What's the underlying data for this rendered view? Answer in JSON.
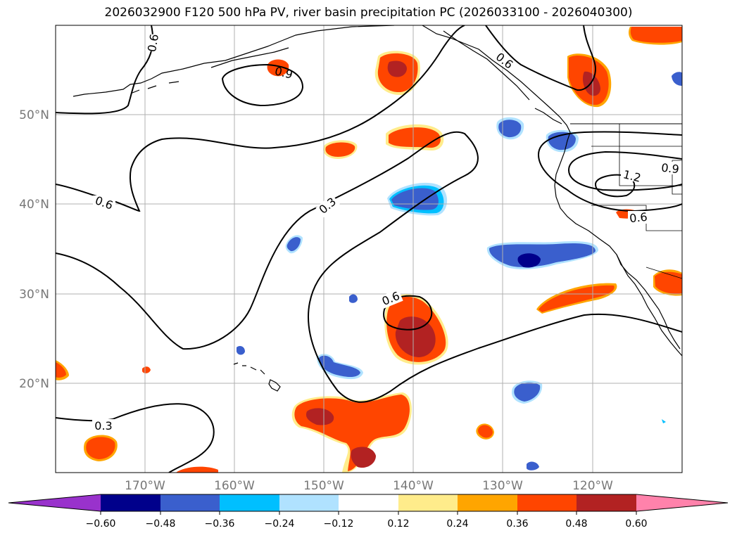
{
  "title": "2026032900 F120 500 hPa PV, river basin precipitation PC (2026033100 - 2026040300)",
  "map": {
    "lon_range": [
      -180,
      -110
    ],
    "lat_range": [
      10,
      60
    ],
    "xticks": [
      -170,
      -160,
      -150,
      -140,
      -130,
      -120
    ],
    "xtick_labels": [
      "170°W",
      "160°W",
      "150°W",
      "140°W",
      "130°W",
      "120°W"
    ],
    "yticks": [
      20,
      30,
      40,
      50
    ],
    "ytick_labels": [
      "20°N",
      "30°N",
      "40°N",
      "50°N"
    ],
    "gridlines": true
  },
  "contours": {
    "field": "500 hPa PV",
    "color": "#000000",
    "labels": [
      "0.6",
      "0.9",
      "0.6",
      "0.6",
      "0.3",
      "0.6",
      "0.3",
      "0.9",
      "1.2",
      "0.6"
    ]
  },
  "colorbar": {
    "extend": "both",
    "tick_labels": [
      "−0.60",
      "−0.48",
      "−0.36",
      "−0.24",
      "−0.12",
      "0.12",
      "0.24",
      "0.36",
      "0.48",
      "0.60"
    ],
    "colors": [
      "#9932cc",
      "#00008b",
      "#3a5fcd",
      "#00bfff",
      "#b0e2ff",
      "#ffffff",
      "#ffec8b",
      "#ffa500",
      "#ff4500",
      "#b22222",
      "#ff82ab"
    ]
  }
}
